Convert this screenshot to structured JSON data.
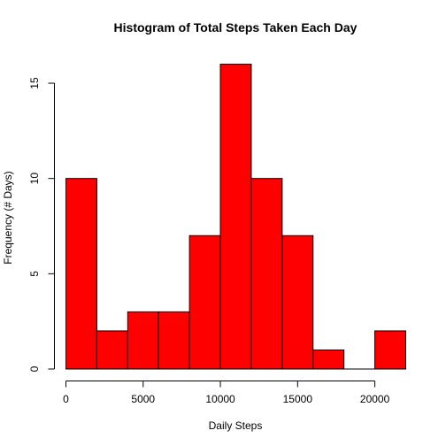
{
  "chart_data": {
    "type": "bar",
    "subtype": "histogram",
    "title": "Histogram of Total Steps Taken Each Day",
    "xlabel": "Daily Steps",
    "ylabel": "Frequency (# Days)",
    "bin_edges": [
      0,
      2000,
      4000,
      6000,
      8000,
      10000,
      12000,
      14000,
      16000,
      18000,
      20000,
      22000
    ],
    "values": [
      10,
      2,
      3,
      3,
      7,
      16,
      10,
      7,
      1,
      0,
      2
    ],
    "xlim": [
      0,
      22000
    ],
    "ylim": [
      0,
      16
    ],
    "x_ticks": [
      0,
      5000,
      10000,
      15000,
      20000
    ],
    "x_tick_labels": [
      "0",
      "5000",
      "10000",
      "15000",
      "20000"
    ],
    "y_ticks": [
      0,
      5,
      10,
      15
    ],
    "y_tick_labels": [
      "0",
      "5",
      "10",
      "15"
    ],
    "bar_color": "#ff0000",
    "bar_edge_color": "#000000",
    "grid": false,
    "legend": "none"
  }
}
